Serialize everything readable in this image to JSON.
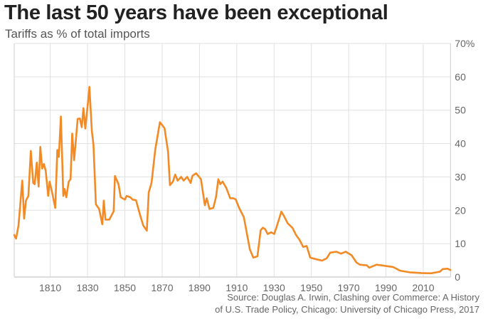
{
  "chart_data": {
    "type": "line",
    "title": "The last 50 years have been exceptional",
    "subtitle": "Tariffs as % of total imports",
    "xlabel": "",
    "ylabel": "",
    "xlim": [
      1790.7,
      2024.6
    ],
    "ylim": [
      0,
      70
    ],
    "x_ticks": [
      "1810",
      "1830",
      "1850",
      "1870",
      "1890",
      "1910",
      "1930",
      "1950",
      "1970",
      "1990",
      "2010"
    ],
    "y_ticks": [
      "0",
      "10",
      "20",
      "30",
      "40",
      "50",
      "60",
      "70%"
    ],
    "grid": true,
    "line_color": "#f28a25",
    "series": [
      {
        "x": [
          1790.7,
          1791.7,
          1793,
          1795,
          1796,
          1797,
          1798.3,
          1799.6,
          1800.9,
          1801.7,
          1802.8,
          1803.8,
          1804.7,
          1805.7,
          1806.6,
          1807.6,
          1808.9,
          1809.7,
          1811,
          1812.7,
          1813.8,
          1814.6,
          1815.7,
          1817,
          1817.7,
          1818.6,
          1819.9,
          1820.9,
          1821.8,
          1822.8,
          1824.7,
          1825.9,
          1826.9,
          1827.8,
          1828.8,
          1830,
          1831,
          1832.3,
          1833.2,
          1834.5,
          1836.2,
          1837.9,
          1838.7,
          1839.6,
          1841.7,
          1844,
          1844.7,
          1846.6,
          1847.8,
          1850,
          1851,
          1852.9,
          1854.2,
          1856,
          1858,
          1859.9,
          1861.8,
          1862.8,
          1864.3,
          1866.3,
          1868.8,
          1871.3,
          1873.2,
          1874.2,
          1875.8,
          1877,
          1878.3,
          1880.2,
          1881.5,
          1883.4,
          1885.3,
          1886.2,
          1888.2,
          1890.8,
          1892.9,
          1893.9,
          1895.4,
          1897.4,
          1898.9,
          1900.1,
          1901.2,
          1902.4,
          1904.3,
          1906.5,
          1908.1,
          1909.4,
          1911.3,
          1913.8,
          1917,
          1918.9,
          1921.1,
          1922.8,
          1924,
          1925.3,
          1926.6,
          1928.5,
          1930.1,
          1931.6,
          1933.9,
          1935.4,
          1937.3,
          1939.9,
          1941.8,
          1943.7,
          1945.6,
          1947.5,
          1949.4,
          1951.3,
          1955.7,
          1958.2,
          1960.1,
          1963.4,
          1965.9,
          1968.4,
          1971.6,
          1974.1,
          1976,
          1979.8,
          1981,
          1984.9,
          1987.4,
          1993.8,
          1997.6,
          2002.7,
          2009,
          2014.1,
          2018.9,
          2020.4,
          2023,
          2024.6
        ],
        "values": [
          12.6,
          11.5,
          15.4,
          28.9,
          17.5,
          22.9,
          24.3,
          37.8,
          28.2,
          27.8,
          34.3,
          27.1,
          39.0,
          32.5,
          33.9,
          31.8,
          24.3,
          28.6,
          25.4,
          20.7,
          38.1,
          36.0,
          48.1,
          24.3,
          26.4,
          23.9,
          28.6,
          29.3,
          43.0,
          35.0,
          47.4,
          47.5,
          44.9,
          50.6,
          44.5,
          50.9,
          57.0,
          43.8,
          39.6,
          21.8,
          20.4,
          15.8,
          22.9,
          17.2,
          17.2,
          19.7,
          30.3,
          27.8,
          23.9,
          23.2,
          24.3,
          23.9,
          23.2,
          23.0,
          18.9,
          15.4,
          13.9,
          25.4,
          28.2,
          38.1,
          46.4,
          44.6,
          37.5,
          27.5,
          28.6,
          30.7,
          28.9,
          30.0,
          28.9,
          30.0,
          28.2,
          30.3,
          31.1,
          29.3,
          21.5,
          23.6,
          20.4,
          20.7,
          24.0,
          29.3,
          27.8,
          28.6,
          26.8,
          23.6,
          23.6,
          23.3,
          20.7,
          17.9,
          8.3,
          5.8,
          6.2,
          14.0,
          14.8,
          14.3,
          12.9,
          13.4,
          12.9,
          15.4,
          19.6,
          18.2,
          16.1,
          14.7,
          12.6,
          11.1,
          9.0,
          9.3,
          5.8,
          5.5,
          4.9,
          5.6,
          7.3,
          7.6,
          7.0,
          7.6,
          6.5,
          4.4,
          3.7,
          3.5,
          2.8,
          3.7,
          3.5,
          3.0,
          1.9,
          1.4,
          1.2,
          1.1,
          1.6,
          2.4,
          2.5,
          2.1
        ]
      }
    ]
  },
  "source": {
    "line1": "Source: Douglas A. Irwin, Clashing over Commerce: A History",
    "line2": "of U.S. Trade Policy, Chicago: University of Chicago Press, 2017"
  }
}
